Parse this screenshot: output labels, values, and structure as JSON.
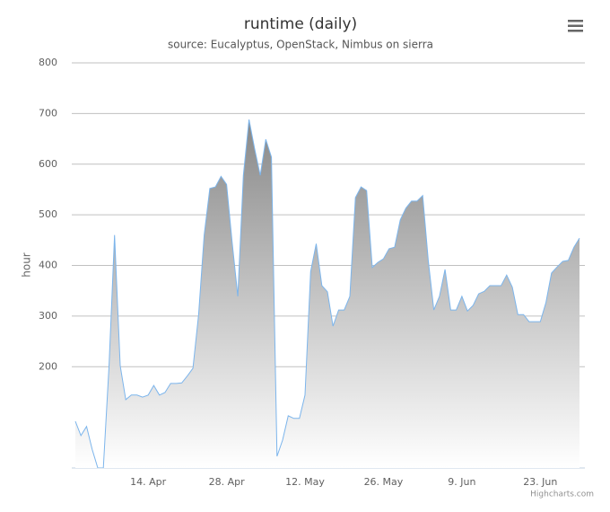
{
  "chart_data": {
    "type": "area",
    "title": "runtime (daily)",
    "subtitle": "source: Eucalyptus, OpenStack, Nimbus on sierra",
    "y_label": "hour",
    "credits": "Highcharts.com",
    "categories": [
      null,
      null,
      null,
      null,
      null,
      null,
      null,
      null,
      null,
      null,
      null,
      null,
      null,
      "14. Apr",
      null,
      null,
      null,
      null,
      null,
      null,
      null,
      null,
      null,
      null,
      null,
      null,
      null,
      "28. Apr",
      null,
      null,
      null,
      null,
      null,
      null,
      null,
      null,
      null,
      null,
      null,
      null,
      null,
      "12. May",
      null,
      null,
      null,
      null,
      null,
      null,
      null,
      null,
      null,
      null,
      null,
      null,
      null,
      "26. May",
      null,
      null,
      null,
      null,
      null,
      null,
      null,
      null,
      null,
      null,
      null,
      null,
      null,
      "9. Jun",
      null,
      null,
      null,
      null,
      null,
      null,
      null,
      null,
      null,
      null,
      null,
      null,
      null,
      "23. Jun",
      null,
      null,
      null,
      null,
      null,
      null,
      null
    ],
    "values": [
      92,
      64,
      82,
      37,
      0,
      0,
      200,
      460,
      202,
      135,
      144,
      144,
      140,
      144,
      163,
      144,
      149,
      167,
      167,
      168,
      182,
      197,
      303,
      460,
      552,
      555,
      576,
      560,
      445,
      339,
      578,
      688,
      631,
      578,
      649,
      614,
      23,
      55,
      103,
      98,
      98,
      144,
      388,
      443,
      360,
      348,
      280,
      312,
      312,
      339,
      534,
      555,
      548,
      396,
      406,
      413,
      433,
      436,
      490,
      513,
      527,
      527,
      538,
      410,
      312,
      339,
      392,
      312,
      312,
      339,
      310,
      321,
      344,
      349,
      360,
      360,
      360,
      381,
      357,
      303,
      303,
      289,
      289,
      289,
      326,
      385,
      397,
      408,
      410,
      436,
      454
    ],
    "color": "#7cb5ec",
    "ylim": [
      0,
      800
    ],
    "yticks": [
      200,
      300,
      400,
      500,
      600,
      700,
      800
    ],
    "grid": true
  }
}
